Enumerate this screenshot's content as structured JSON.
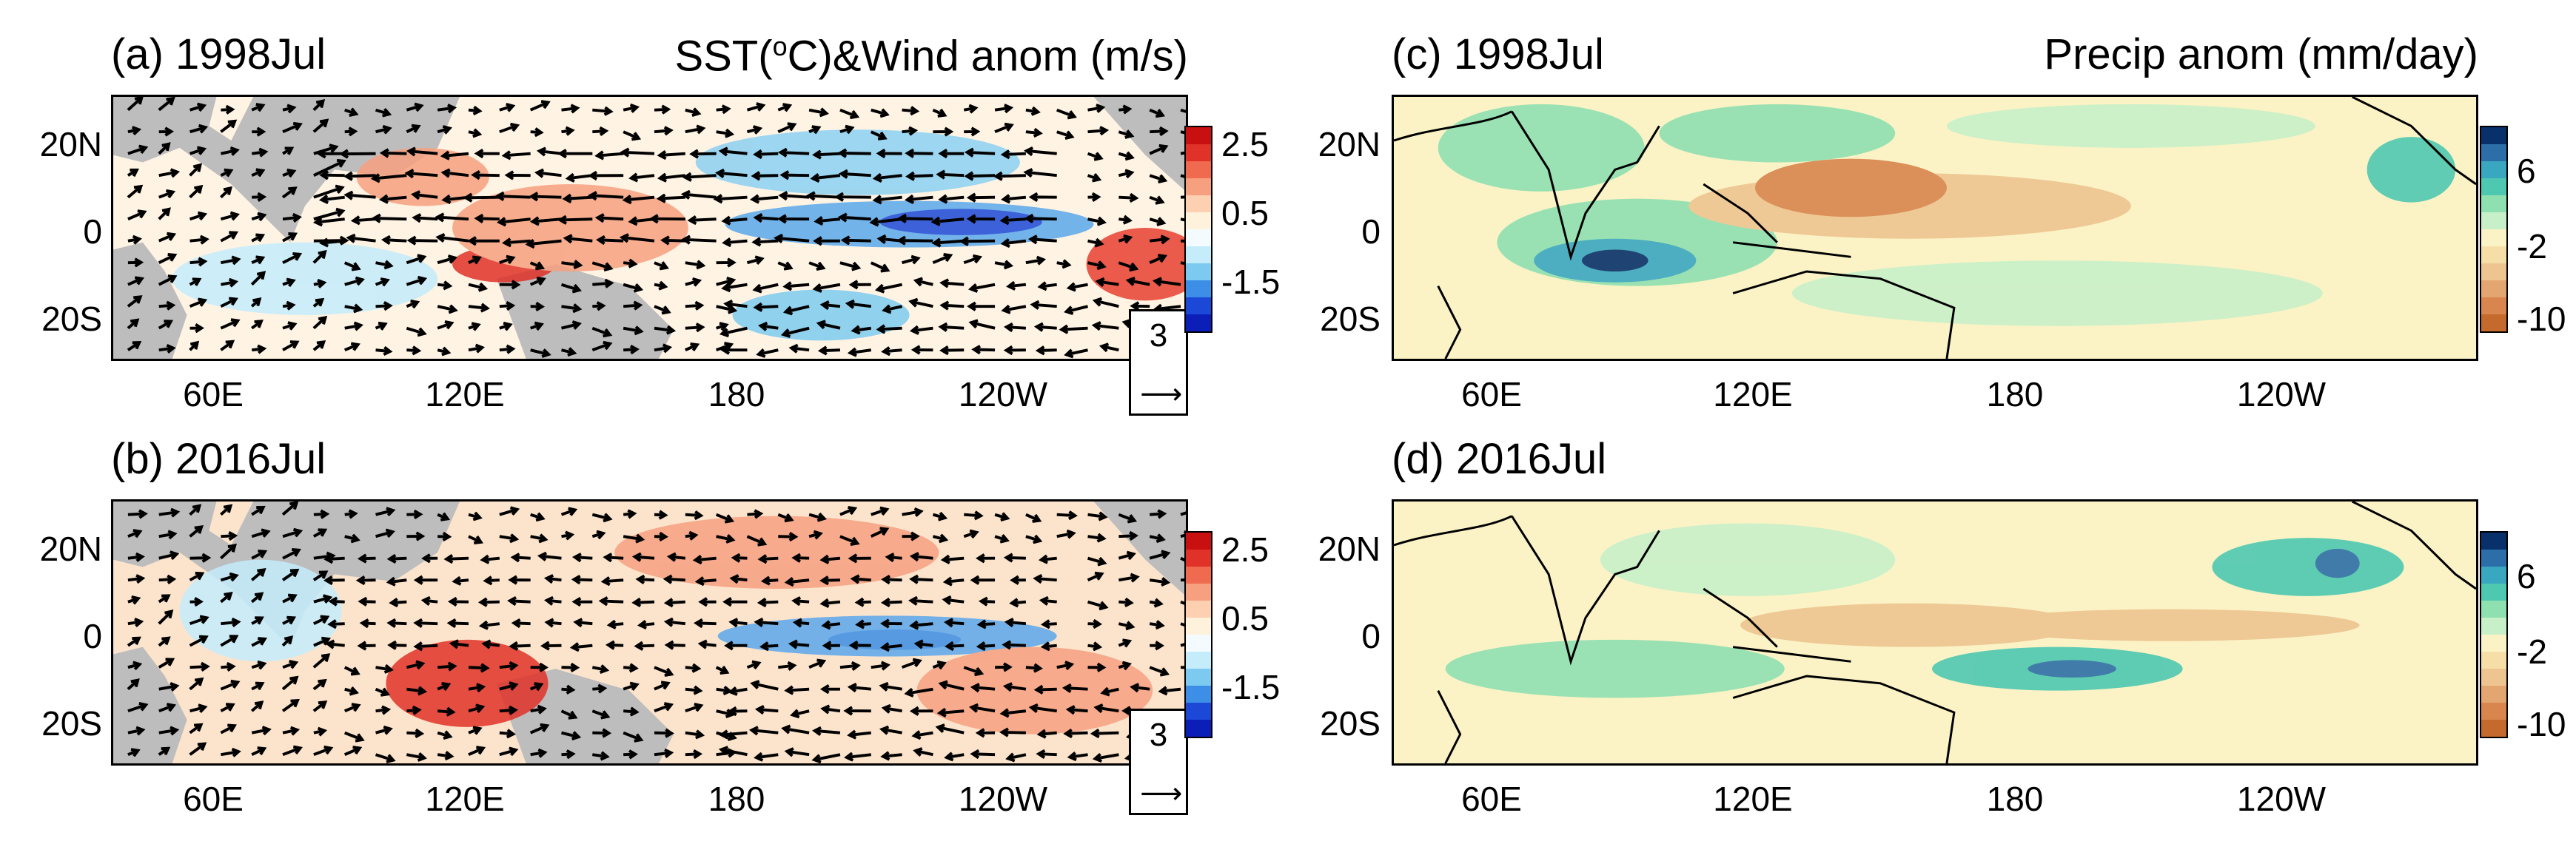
{
  "panels": {
    "a": {
      "title": "(a) 1998Jul",
      "heading_parts": [
        "SST(",
        "o",
        "C)&Wind anom (m/s)"
      ]
    },
    "b": {
      "title": "(b) 2016Jul"
    },
    "c": {
      "title": "(c) 1998Jul",
      "heading": "Precip anom (mm/day)"
    },
    "d": {
      "title": "(d) 2016Jul"
    }
  },
  "lat_labels": [
    "20N",
    "0",
    "20S"
  ],
  "lon_labels": [
    "60E",
    "120E",
    "180",
    "120W"
  ],
  "sst_colorbar": {
    "labels": [
      "2.5",
      "0.5",
      "-1.5"
    ],
    "colors": [
      "#c81010",
      "#e03228",
      "#f06a50",
      "#f7a080",
      "#fcd0b0",
      "#fff2dc",
      "#f4fbff",
      "#c4ecfb",
      "#7ccaf0",
      "#3c8ee6",
      "#1c48d8",
      "#0c1eb8"
    ]
  },
  "precip_colorbar": {
    "labels": [
      "6",
      "-2",
      "-10"
    ],
    "colors": [
      "#08306b",
      "#2c6fa8",
      "#3aa7c0",
      "#4ec8b0",
      "#8fe0b0",
      "#c8f0c8",
      "#fbf3c6",
      "#f6dfa6",
      "#eec590",
      "#e4a670",
      "#d8864e",
      "#c46a2c"
    ]
  },
  "ref_vector": {
    "magnitude": "3",
    "arrow": "⟶"
  }
}
